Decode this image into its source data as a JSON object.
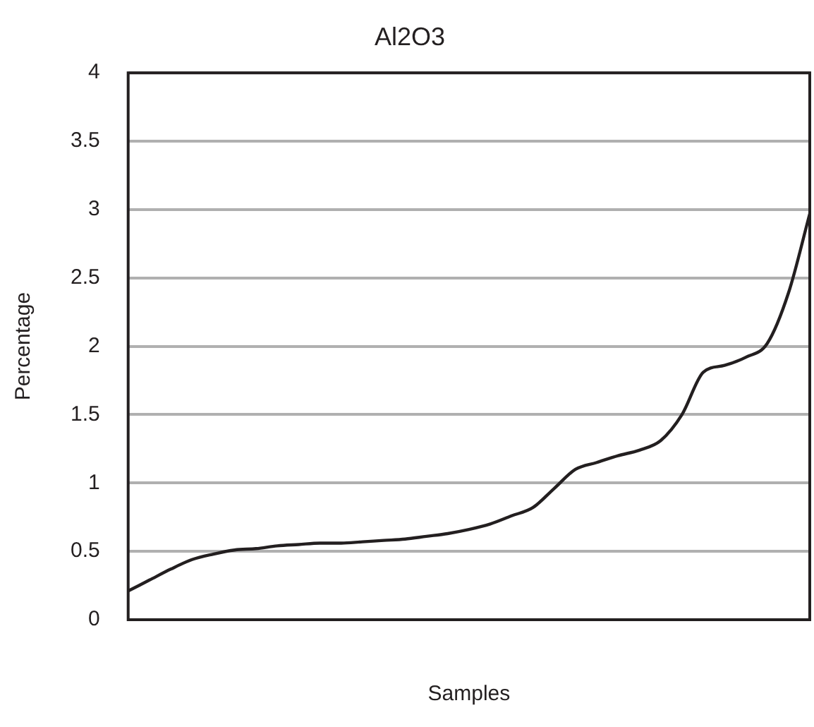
{
  "chart_data": {
    "type": "line",
    "title": "Al2O3",
    "xlabel": "Samples",
    "ylabel": "Percentage",
    "categories": [
      null,
      null,
      null,
      null,
      null,
      null,
      null,
      null,
      null,
      null,
      null,
      null,
      null,
      null,
      null,
      null,
      null,
      null,
      null,
      null,
      null,
      null,
      null,
      null,
      null,
      null,
      null,
      null,
      null,
      null,
      null,
      null,
      null
    ],
    "series": [
      {
        "color": "#231f20",
        "values": [
          0.21,
          0.29,
          0.37,
          0.44,
          0.48,
          0.51,
          0.52,
          0.54,
          0.55,
          0.56,
          0.56,
          0.57,
          0.58,
          0.59,
          0.61,
          0.63,
          0.66,
          0.7,
          0.76,
          0.82,
          0.96,
          1.1,
          1.15,
          1.2,
          1.24,
          1.31,
          1.5,
          1.81,
          1.86,
          1.92,
          2.02,
          2.39,
          2.97
        ]
      }
    ],
    "ylim": [
      0,
      4
    ],
    "yticks": [
      0,
      0.5,
      1,
      1.5,
      2,
      2.5,
      3,
      3.5,
      4
    ],
    "grid": "y",
    "legend": false,
    "marker": "none",
    "line_style": "solid"
  }
}
